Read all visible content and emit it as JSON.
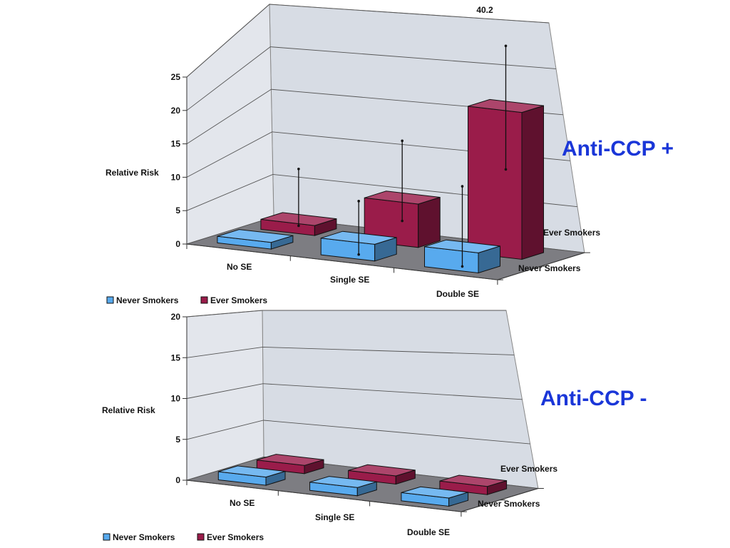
{
  "chart_data": [
    {
      "type": "bar",
      "title": "Anti-CCP +",
      "categories": [
        "No SE",
        "Single SE",
        "Double SE"
      ],
      "depth_categories": [
        "Never Smokers",
        "Ever Smokers"
      ],
      "ylabel": "Relative Risk",
      "ylim": [
        0,
        25
      ],
      "yticks": [
        "0",
        "5",
        "10",
        "15",
        "20",
        "25"
      ],
      "legend": [
        "Never Smokers",
        "Ever Smokers"
      ],
      "series": [
        {
          "name": "Never Smokers",
          "color": "#58aaee",
          "values": [
            1,
            2.5,
            3
          ],
          "err_low": [
            null,
            0,
            0
          ],
          "err_high": [
            null,
            8,
            12
          ]
        },
        {
          "name": "Ever Smokers",
          "color": "#9a1c4a",
          "values": [
            1.5,
            6.5,
            22
          ],
          "err_low": [
            0.5,
            3,
            12.5
          ],
          "err_high": [
            9,
            15,
            40.2
          ]
        }
      ],
      "annotation": "40.2"
    },
    {
      "type": "bar",
      "title": "Anti-CCP -",
      "categories": [
        "No SE",
        "Single SE",
        "Double SE"
      ],
      "depth_categories": [
        "Never Smokers",
        "Ever Smokers"
      ],
      "ylabel": "Relative Risk",
      "ylim": [
        0,
        20
      ],
      "yticks": [
        "0",
        "5",
        "10",
        "15",
        "20"
      ],
      "legend": [
        "Never Smokers",
        "Ever Smokers"
      ],
      "series": [
        {
          "name": "Never Smokers",
          "color": "#58aaee",
          "values": [
            1,
            1,
            1
          ]
        },
        {
          "name": "Ever Smokers",
          "color": "#9a1c4a",
          "values": [
            1,
            1,
            1
          ]
        }
      ]
    }
  ]
}
